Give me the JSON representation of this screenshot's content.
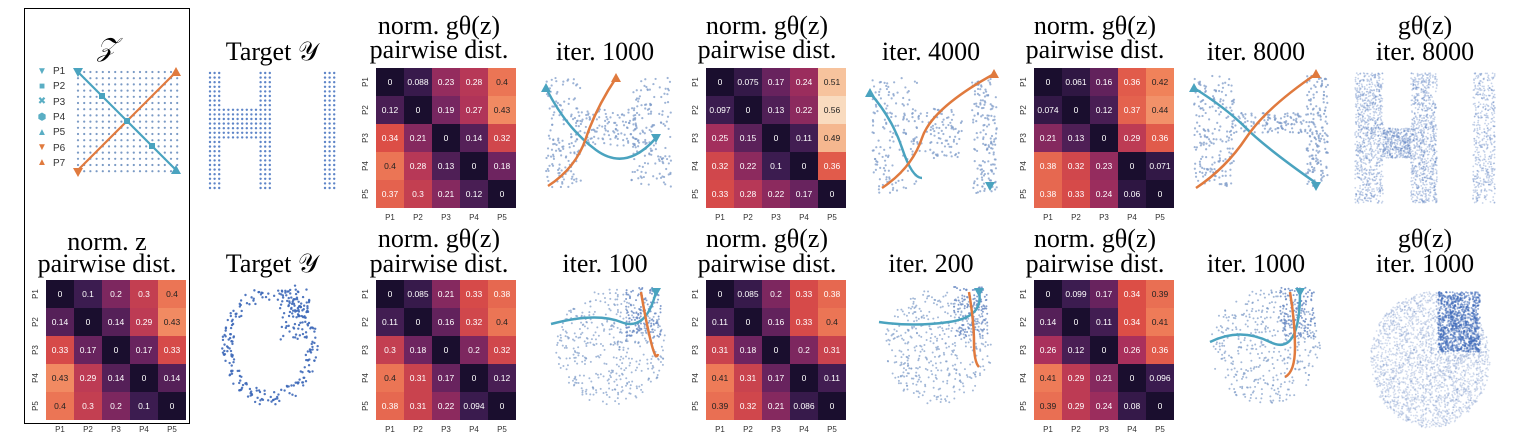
{
  "latent_panel": {
    "title": "𝒵",
    "legend": [
      {
        "label": "P1",
        "marker": "▼",
        "color": "#5aaec4"
      },
      {
        "label": "P2",
        "marker": "■",
        "color": "#5aaec4"
      },
      {
        "label": "P3",
        "marker": "✖",
        "color": "#5aaec4"
      },
      {
        "label": "P4",
        "marker": "⬢",
        "color": "#5aaec4"
      },
      {
        "label": "P5",
        "marker": "▲",
        "color": "#5aaec4"
      },
      {
        "label": "P6",
        "marker": "▼",
        "color": "#e07a3e"
      },
      {
        "label": "P7",
        "marker": "▲",
        "color": "#e07a3e"
      }
    ],
    "norm_title_line1": "norm. z",
    "norm_title_line2": "pairwise dist."
  },
  "row1": {
    "target_title": "Target 𝒴",
    "heatmap_title_line1": "norm. gθ(z)",
    "heatmap_title_line2": "pairwise dist.",
    "iter_titles": [
      "iter. 1000",
      "iter. 4000",
      "iter. 8000"
    ],
    "final_title_line1": "gθ(z)",
    "final_title_line2": "iter. 8000"
  },
  "row2": {
    "target_title": "Target 𝒴",
    "heatmap_title_line1": "norm. gθ(z)",
    "heatmap_title_line2": "pairwise dist.",
    "iter_titles": [
      "iter. 100",
      "iter. 200",
      "iter. 1000"
    ],
    "final_title_line1": "gθ(z)",
    "final_title_line2": "iter. 1000"
  },
  "axis_labels": [
    "P1",
    "P2",
    "P3",
    "P4",
    "P5"
  ],
  "colors": {
    "diag": "#1a0e2e",
    "teal": "#4aa3bf",
    "orange": "#e07a3e",
    "scatter": "#4d78c2"
  },
  "heatmaps": {
    "latent": [
      [
        "0",
        "0.1",
        "0.2",
        "0.3",
        "0.4"
      ],
      [
        "0.14",
        "0",
        "0.14",
        "0.29",
        "0.43"
      ],
      [
        "0.33",
        "0.17",
        "0",
        "0.17",
        "0.33"
      ],
      [
        "0.43",
        "0.29",
        "0.14",
        "0",
        "0.14"
      ],
      [
        "0.4",
        "0.3",
        "0.2",
        "0.1",
        "0"
      ]
    ],
    "r1a": [
      [
        "0",
        "0.088",
        "0.23",
        "0.28",
        "0.4"
      ],
      [
        "0.12",
        "0",
        "0.19",
        "0.27",
        "0.43"
      ],
      [
        "0.34",
        "0.21",
        "0",
        "0.14",
        "0.32"
      ],
      [
        "0.4",
        "0.28",
        "0.13",
        "0",
        "0.18"
      ],
      [
        "0.37",
        "0.3",
        "0.21",
        "0.12",
        "0"
      ]
    ],
    "r1b": [
      [
        "0",
        "0.075",
        "0.17",
        "0.24",
        "0.51"
      ],
      [
        "0.097",
        "0",
        "0.13",
        "0.22",
        "0.56"
      ],
      [
        "0.25",
        "0.15",
        "0",
        "0.11",
        "0.49"
      ],
      [
        "0.32",
        "0.22",
        "0.1",
        "0",
        "0.36"
      ],
      [
        "0.33",
        "0.28",
        "0.22",
        "0.17",
        "0"
      ]
    ],
    "r1c": [
      [
        "0",
        "0.061",
        "0.16",
        "0.36",
        "0.42"
      ],
      [
        "0.074",
        "0",
        "0.12",
        "0.37",
        "0.44"
      ],
      [
        "0.21",
        "0.13",
        "0",
        "0.29",
        "0.36"
      ],
      [
        "0.38",
        "0.32",
        "0.23",
        "0",
        "0.071"
      ],
      [
        "0.38",
        "0.33",
        "0.24",
        "0.06",
        "0"
      ]
    ],
    "r2a": [
      [
        "0",
        "0.085",
        "0.21",
        "0.33",
        "0.38"
      ],
      [
        "0.11",
        "0",
        "0.16",
        "0.32",
        "0.4"
      ],
      [
        "0.3",
        "0.18",
        "0",
        "0.2",
        "0.32"
      ],
      [
        "0.4",
        "0.31",
        "0.17",
        "0",
        "0.12"
      ],
      [
        "0.38",
        "0.31",
        "0.22",
        "0.094",
        "0"
      ]
    ],
    "r2b": [
      [
        "0",
        "0.085",
        "0.2",
        "0.33",
        "0.38"
      ],
      [
        "0.11",
        "0",
        "0.16",
        "0.33",
        "0.4"
      ],
      [
        "0.31",
        "0.18",
        "0",
        "0.2",
        "0.31"
      ],
      [
        "0.41",
        "0.31",
        "0.17",
        "0",
        "0.11"
      ],
      [
        "0.39",
        "0.32",
        "0.21",
        "0.086",
        "0"
      ]
    ],
    "r2c": [
      [
        "0",
        "0.099",
        "0.17",
        "0.34",
        "0.39"
      ],
      [
        "0.14",
        "0",
        "0.11",
        "0.34",
        "0.41"
      ],
      [
        "0.26",
        "0.12",
        "0",
        "0.26",
        "0.36"
      ],
      [
        "0.41",
        "0.29",
        "0.21",
        "0",
        "0.096"
      ],
      [
        "0.39",
        "0.29",
        "0.24",
        "0.08",
        "0"
      ]
    ]
  }
}
